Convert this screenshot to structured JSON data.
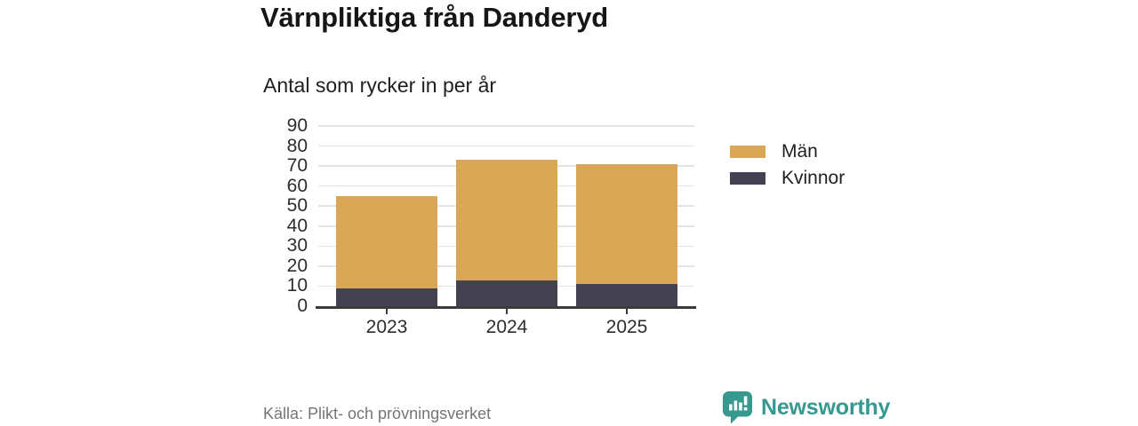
{
  "header": {
    "title": "Värnpliktiga från Danderyd",
    "subtitle": "Antal som rycker in per år"
  },
  "chart_data": {
    "type": "bar",
    "stacked": true,
    "title": "Värnpliktiga från Danderyd",
    "subtitle": "Antal som rycker in per år",
    "categories": [
      "2023",
      "2024",
      "2025"
    ],
    "series": [
      {
        "name": "Kvinnor",
        "color": "#444150",
        "values": [
          9,
          13,
          11
        ]
      },
      {
        "name": "Män",
        "color": "#D8A856",
        "values": [
          46,
          60,
          60
        ]
      }
    ],
    "totals": [
      55,
      73,
      71
    ],
    "xlabel": "",
    "ylabel": "Antal",
    "ylim": [
      0,
      90
    ],
    "yticks": [
      0,
      10,
      20,
      30,
      40,
      50,
      60,
      70,
      80,
      90
    ],
    "grid": "horizontal",
    "legend_position": "right"
  },
  "legend": {
    "items": [
      {
        "label": "Män",
        "color": "#D8A856"
      },
      {
        "label": "Kvinnor",
        "color": "#444150"
      }
    ]
  },
  "footer": {
    "source": "Källa: Plikt- och prövningsverket",
    "brand": "Newsworthy",
    "brand_color": "#36988F"
  },
  "colors": {
    "male": "#D8A856",
    "female": "#444150",
    "gridline": "#e4e4e4",
    "axis": "#3b3b3b",
    "source_text": "#757575"
  }
}
